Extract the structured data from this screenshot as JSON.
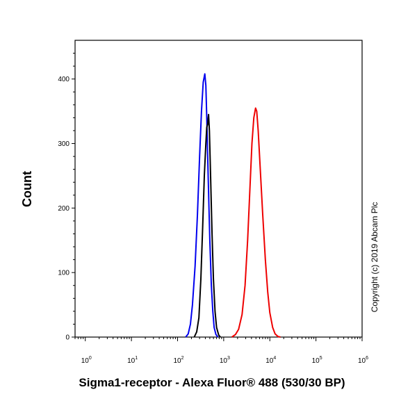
{
  "chart_data": {
    "type": "line",
    "xlabel": "Sigma1-receptor - Alexa Fluor® 488 (530/30 BP)",
    "ylabel": "Count",
    "xscale": "log",
    "xlim": [
      0.6,
      1000000
    ],
    "ylim": [
      0,
      460
    ],
    "x_tick_base": "10",
    "x_ticks": [
      {
        "value": 1,
        "exp": "0"
      },
      {
        "value": 10,
        "exp": "1"
      },
      {
        "value": 100,
        "exp": "2"
      },
      {
        "value": 1000,
        "exp": "3"
      },
      {
        "value": 10000,
        "exp": "4"
      },
      {
        "value": 100000,
        "exp": "5"
      },
      {
        "value": 1000000,
        "exp": "6"
      }
    ],
    "y_ticks": [
      "0",
      "100",
      "200",
      "300",
      "400"
    ],
    "copyright": "Copyright (c) 2019 Abcam Plc",
    "series": [
      {
        "color": "#0000ee",
        "points": [
          [
            150,
            0
          ],
          [
            170,
            5
          ],
          [
            190,
            20
          ],
          [
            210,
            50
          ],
          [
            240,
            110
          ],
          [
            270,
            190
          ],
          [
            300,
            280
          ],
          [
            330,
            350
          ],
          [
            360,
            395
          ],
          [
            390,
            408
          ],
          [
            410,
            390
          ],
          [
            430,
            340
          ],
          [
            460,
            250
          ],
          [
            500,
            150
          ],
          [
            540,
            80
          ],
          [
            580,
            40
          ],
          [
            620,
            15
          ],
          [
            680,
            4
          ],
          [
            750,
            0
          ]
        ]
      },
      {
        "color": "#000000",
        "points": [
          [
            230,
            0
          ],
          [
            260,
            8
          ],
          [
            290,
            30
          ],
          [
            320,
            90
          ],
          [
            350,
            170
          ],
          [
            380,
            250
          ],
          [
            410,
            300
          ],
          [
            430,
            325
          ],
          [
            450,
            330
          ],
          [
            470,
            345
          ],
          [
            490,
            320
          ],
          [
            520,
            250
          ],
          [
            560,
            160
          ],
          [
            600,
            90
          ],
          [
            650,
            40
          ],
          [
            700,
            15
          ],
          [
            780,
            3
          ],
          [
            850,
            0
          ]
        ]
      },
      {
        "color": "#ee0000",
        "points": [
          [
            1500,
            0
          ],
          [
            1800,
            4
          ],
          [
            2100,
            12
          ],
          [
            2500,
            35
          ],
          [
            2900,
            80
          ],
          [
            3300,
            150
          ],
          [
            3700,
            230
          ],
          [
            4100,
            300
          ],
          [
            4500,
            340
          ],
          [
            4900,
            355
          ],
          [
            5200,
            350
          ],
          [
            5600,
            320
          ],
          [
            6200,
            260
          ],
          [
            7000,
            190
          ],
          [
            8000,
            120
          ],
          [
            9000,
            70
          ],
          [
            10000,
            38
          ],
          [
            11500,
            15
          ],
          [
            13000,
            5
          ],
          [
            15000,
            1
          ],
          [
            17000,
            0
          ]
        ]
      }
    ]
  }
}
